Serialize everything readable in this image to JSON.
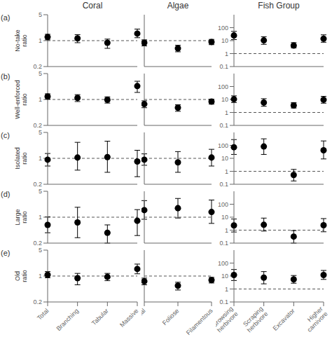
{
  "chart_data": [
    {
      "type": "scatter",
      "title": "Coral",
      "annotation": "(a)",
      "ylabel": "No-take\nratio",
      "categories": [
        "Total",
        "Branching",
        "Tabular",
        "Massive"
      ],
      "values": [
        1.25,
        1.15,
        0.88,
        1.55
      ],
      "lo": [
        1.05,
        0.88,
        0.62,
        1.2
      ],
      "hi": [
        1.48,
        1.45,
        1.1,
        2.05
      ],
      "color": "black",
      "log": "y",
      "ylim": [
        0.2,
        5.0
      ],
      "yticks": [
        0.2,
        1,
        5
      ],
      "reference_line": {
        "value": 1.0,
        "line_style": "dashed"
      },
      "tick_labels": "y",
      "grid": false
    },
    {
      "type": "scatter",
      "title": "Algae",
      "categories": [
        "Total",
        "Foliose",
        "Filamentous"
      ],
      "values": [
        0.88,
        0.62,
        0.92
      ],
      "lo": [
        0.72,
        0.5,
        0.78
      ],
      "hi": [
        1.05,
        0.75,
        1.08
      ],
      "color": "black",
      "log": "y",
      "ylim": [
        0.2,
        5.0
      ],
      "yticks": [],
      "reference_line": {
        "value": 1.0,
        "line_style": "dashed"
      },
      "tick_labels": false,
      "grid": false
    },
    {
      "type": "scatter",
      "title": "Fish Group",
      "categories": [
        "Browsing\nherbivore",
        "Scraping\nherbivore",
        "Excavator",
        "Higher\ncarnivore"
      ],
      "values": [
        25.0,
        10.5,
        4.2,
        14.0
      ],
      "lo": [
        12.0,
        5.2,
        2.8,
        7.5
      ],
      "hi": [
        52.0,
        20.0,
        7.0,
        28.0
      ],
      "color": "black",
      "log": "y",
      "ylim": [
        0.1,
        1000.0
      ],
      "yticks": [
        0.1,
        1,
        10,
        100
      ],
      "reference_line": {
        "value": 1.0,
        "line_style": "dashed"
      },
      "tick_labels": "y",
      "grid": false
    },
    {
      "type": "scatter",
      "annotation": "(b)",
      "ylabel": "Well-enforced\nratio",
      "categories": [
        "Total",
        "Branching",
        "Tabular",
        "Massive"
      ],
      "values": [
        1.2,
        1.1,
        0.98,
        2.3
      ],
      "lo": [
        1.02,
        0.88,
        0.8,
        1.55
      ],
      "hi": [
        1.42,
        1.35,
        1.18,
        3.1
      ],
      "color": "black",
      "log": "y",
      "ylim": [
        0.2,
        5.0
      ],
      "yticks": [
        0.2,
        1,
        5
      ],
      "reference_line": {
        "value": 1.0,
        "line_style": "dashed"
      },
      "tick_labels": "y",
      "grid": false
    },
    {
      "type": "scatter",
      "categories": [
        "Total",
        "Foliose",
        "Filamentous"
      ],
      "values": [
        0.75,
        0.6,
        0.88
      ],
      "lo": [
        0.6,
        0.48,
        0.75
      ],
      "hi": [
        0.92,
        0.72,
        1.02
      ],
      "color": "black",
      "log": "y",
      "ylim": [
        0.2,
        5.0
      ],
      "yticks": [],
      "reference_line": {
        "value": 1.0,
        "line_style": "dashed"
      },
      "tick_labels": false,
      "grid": false
    },
    {
      "type": "scatter",
      "categories": [
        "Browsing\nherbivore",
        "Scraping\nherbivore",
        "Excavator",
        "Higher\ncarnivore"
      ],
      "values": [
        10.5,
        5.8,
        3.5,
        9.5
      ],
      "lo": [
        5.8,
        3.0,
        2.2,
        5.2
      ],
      "hi": [
        19.0,
        11.5,
        5.8,
        17.5
      ],
      "color": "black",
      "log": "y",
      "ylim": [
        0.1,
        1000.0
      ],
      "yticks": [
        0.1,
        1,
        10,
        100
      ],
      "reference_line": {
        "value": 1.0,
        "line_style": "dashed"
      },
      "tick_labels": "y",
      "grid": false
    },
    {
      "type": "scatter",
      "annotation": "(c)",
      "ylabel": "Isolated\nratio",
      "categories": [
        "Total",
        "Branching",
        "Tabular",
        "Massive"
      ],
      "values": [
        0.92,
        1.05,
        1.08,
        0.82
      ],
      "lo": [
        0.62,
        0.48,
        0.42,
        0.32
      ],
      "hi": [
        1.35,
        2.7,
        2.9,
        1.65
      ],
      "color": "black",
      "log": "y",
      "ylim": [
        0.2,
        5.0
      ],
      "yticks": [
        0.2,
        1,
        5
      ],
      "reference_line": {
        "value": 1.0,
        "line_style": "dashed"
      },
      "tick_labels": "y",
      "grid": false
    },
    {
      "type": "scatter",
      "categories": [
        "Total",
        "Foliose",
        "Filamentous"
      ],
      "values": [
        0.92,
        0.78,
        1.05
      ],
      "lo": [
        0.65,
        0.42,
        0.62
      ],
      "hi": [
        1.32,
        1.52,
        1.75
      ],
      "color": "black",
      "log": "y",
      "ylim": [
        0.2,
        5.0
      ],
      "yticks": [],
      "reference_line": {
        "value": 1.0,
        "line_style": "dashed"
      },
      "tick_labels": false,
      "grid": false
    },
    {
      "type": "scatter",
      "categories": [
        "Browsing\nherbivore",
        "Scraping\nherbivore",
        "Excavator",
        "Higher\ncarnivore"
      ],
      "values": [
        72.0,
        82.0,
        0.52,
        42.0
      ],
      "lo": [
        20.0,
        20.0,
        0.18,
        9.0
      ],
      "hi": [
        280.0,
        320.0,
        1.4,
        220.0
      ],
      "color": "black",
      "log": "y",
      "ylim": [
        0.1,
        1000.0
      ],
      "yticks": [
        0.1,
        1,
        10,
        100
      ],
      "reference_line": {
        "value": 1.0,
        "line_style": "dashed"
      },
      "tick_labels": "y",
      "grid": false
    },
    {
      "type": "scatter",
      "annotation": "(d)",
      "ylabel": "Large\nratio",
      "categories": [
        "Total",
        "Branching",
        "Tabular",
        "Massive"
      ],
      "values": [
        0.62,
        0.72,
        0.38,
        0.8
      ],
      "lo": [
        0.38,
        0.28,
        0.2,
        0.32
      ],
      "hi": [
        1.02,
        1.85,
        0.62,
        1.6
      ],
      "color": "black",
      "log": "y",
      "ylim": [
        0.2,
        5.0
      ],
      "yticks": [
        0.2,
        1,
        5
      ],
      "reference_line": {
        "value": 1.0,
        "line_style": "dashed"
      },
      "tick_labels": "y",
      "grid": false
    },
    {
      "type": "scatter",
      "categories": [
        "Total",
        "Foliose",
        "Filamentous"
      ],
      "values": [
        1.55,
        1.75,
        1.38
      ],
      "lo": [
        0.88,
        0.95,
        0.68
      ],
      "hi": [
        2.8,
        3.2,
        2.9
      ],
      "color": "black",
      "log": "y",
      "ylim": [
        0.2,
        5.0
      ],
      "yticks": [],
      "reference_line": {
        "value": 1.0,
        "line_style": "dashed"
      },
      "tick_labels": false,
      "grid": false
    },
    {
      "type": "scatter",
      "categories": [
        "Browsing\nherbivore",
        "Scraping\nherbivore",
        "Excavator",
        "Higher\ncarnivore"
      ],
      "values": [
        2.3,
        2.6,
        0.32,
        2.4
      ],
      "lo": [
        0.72,
        0.85,
        0.1,
        0.75
      ],
      "hi": [
        7.2,
        8.5,
        0.92,
        7.8
      ],
      "color": "black",
      "log": "y",
      "ylim": [
        0.1,
        1000.0
      ],
      "yticks": [
        0.1,
        1,
        10,
        100
      ],
      "reference_line": {
        "value": 1.0,
        "line_style": "dashed"
      },
      "tick_labels": "y",
      "grid": false
    },
    {
      "type": "scatter",
      "annotation": "(e)",
      "ylabel": "Old\nratio",
      "categories": [
        "Total",
        "Branching",
        "Tabular",
        "Massive"
      ],
      "values": [
        1.08,
        0.88,
        0.95,
        1.55
      ],
      "lo": [
        0.9,
        0.58,
        0.75,
        1.15
      ],
      "hi": [
        1.32,
        1.18,
        1.18,
        2.1
      ],
      "color": "black",
      "log": "y",
      "ylim": [
        0.2,
        5.0
      ],
      "yticks": [
        0.2,
        1,
        5
      ],
      "reference_line": {
        "value": 1.0,
        "line_style": "dashed"
      },
      "grid": false
    },
    {
      "type": "scatter",
      "categories": [
        "Total",
        "Foliose",
        "Filamentous"
      ],
      "values": [
        0.72,
        0.55,
        0.78
      ],
      "lo": [
        0.58,
        0.42,
        0.65
      ],
      "hi": [
        0.88,
        0.68,
        0.92
      ],
      "color": "black",
      "log": "y",
      "ylim": [
        0.2,
        5.0
      ],
      "yticks": [],
      "reference_line": {
        "value": 1.0,
        "line_style": "dashed"
      },
      "tick_labels": "x",
      "grid": false
    },
    {
      "type": "scatter",
      "categories": [
        "Browsing\nherbivore",
        "Scraping\nherbivore",
        "Excavator",
        "Higher\ncarnivore"
      ],
      "values": [
        12.0,
        7.5,
        5.5,
        12.0
      ],
      "lo": [
        4.5,
        2.5,
        2.8,
        5.5
      ],
      "hi": [
        32.0,
        22.0,
        11.0,
        27.0
      ],
      "color": "black",
      "log": "y",
      "ylim": [
        0.1,
        1000.0
      ],
      "yticks": [
        0.1,
        1,
        10,
        100
      ],
      "reference_line": {
        "value": 1.0,
        "line_style": "dashed"
      },
      "grid": false
    }
  ]
}
